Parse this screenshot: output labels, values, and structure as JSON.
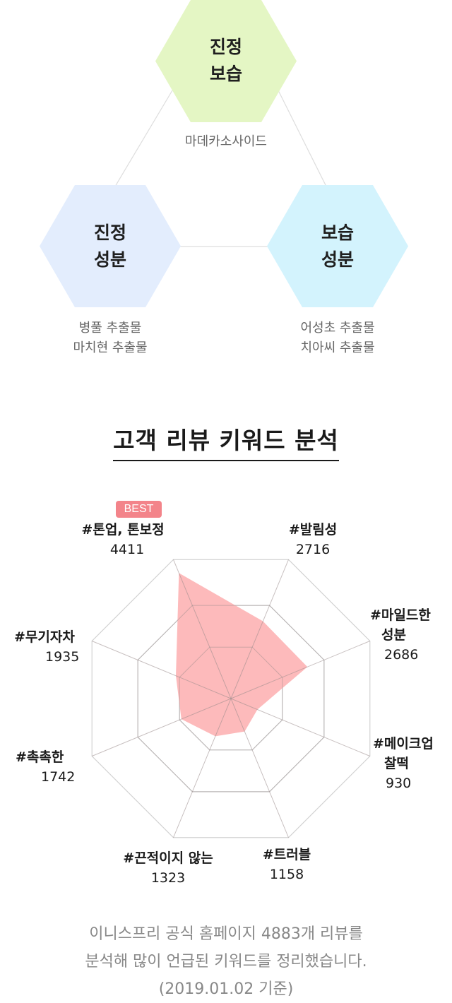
{
  "diagram": {
    "top_hex": [
      "진정",
      "보습"
    ],
    "left_hex": [
      "진정",
      "성분"
    ],
    "right_hex": [
      "보습",
      "성분"
    ],
    "top_ingredients": [
      "마데카소사이드"
    ],
    "left_ingredients": [
      "병풀 추출물",
      "마치현 추출물"
    ],
    "right_ingredients": [
      "어성초 추출물",
      "치아씨 추출물"
    ],
    "colors": {
      "top": "#e4f6c4",
      "left": "#e3edfd",
      "right": "#d3f3fd",
      "connector": "#dddddd"
    }
  },
  "section_title": "고객 리뷰 키워드 분석",
  "best_label": "BEST",
  "chart_data": {
    "type": "radar",
    "max": 4883,
    "fill_color": "#fdb3b4",
    "keywords": [
      {
        "name": "#톤업, 톤보정",
        "value": 4411
      },
      {
        "name": "#발림성",
        "value": 2716
      },
      {
        "name": "#마일드한 성분",
        "name_lines": [
          "#마일드한",
          "성분"
        ],
        "value": 2686
      },
      {
        "name": "#메이크업 찰떡",
        "name_lines": [
          "#메이크업",
          "찰떡"
        ],
        "value": 930
      },
      {
        "name": "#트러블",
        "value": 1158
      },
      {
        "name": "#끈적이지 않는",
        "value": 1323
      },
      {
        "name": "#촉촉한",
        "value": 1742
      },
      {
        "name": "#무기자차",
        "value": 1935
      }
    ]
  },
  "footnote": [
    "이니스프리 공식 홈페이지 4883개 리뷰를",
    "분석해 많이 언급된 키워드를 정리했습니다.",
    "(2019.01.02 기준)"
  ]
}
